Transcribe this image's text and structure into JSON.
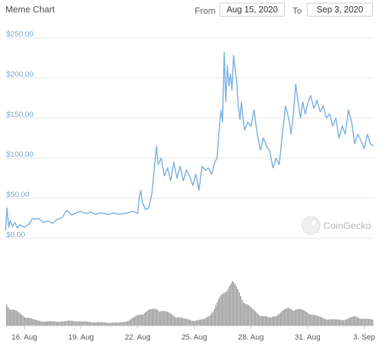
{
  "header": {
    "title": "Meme Chart",
    "from_label": "From",
    "from_value": "Aug 15, 2020",
    "to_label": "To",
    "to_value": "Sep 3, 2020"
  },
  "watermark": {
    "text": "CoinGecko"
  },
  "colors": {
    "price_line": "#7cb0e0",
    "volume_bar": "#888888",
    "grid": "#e6e6e6",
    "price_axis_labels": "#7aa9d8"
  },
  "chart_data": {
    "type": "line",
    "title": "",
    "xlabel": "",
    "ylabel": "",
    "ylim": [
      0,
      250
    ],
    "xlim": [
      "2020-08-15T00:00",
      "2020-09-03T12:00"
    ],
    "grid": true,
    "y_ticks": [
      "$0.00",
      "$50.00",
      "$100.00",
      "$150.00",
      "$200.00",
      "$250.00"
    ],
    "y_tick_values": [
      0,
      50,
      100,
      150,
      200,
      250
    ],
    "x_ticks": [
      "16. Aug",
      "19. Aug",
      "22. Aug",
      "25. Aug",
      "28. Aug",
      "31. Aug",
      "3. Sep"
    ],
    "x_tick_values": [
      "2020-08-16",
      "2020-08-19",
      "2020-08-22",
      "2020-08-25",
      "2020-08-28",
      "2020-08-31",
      "2020-09-03"
    ],
    "series": [
      {
        "values": [
          [
            "2020-08-15T00:00",
            10
          ],
          [
            "2020-08-15T02:00",
            38
          ],
          [
            "2020-08-15T04:00",
            14
          ],
          [
            "2020-08-15T06:00",
            22
          ],
          [
            "2020-08-15T09:00",
            15
          ],
          [
            "2020-08-15T12:00",
            20
          ],
          [
            "2020-08-15T15:00",
            13
          ],
          [
            "2020-08-15T18:00",
            17
          ],
          [
            "2020-08-16T00:00",
            14
          ],
          [
            "2020-08-16T06:00",
            18
          ],
          [
            "2020-08-16T10:00",
            25
          ],
          [
            "2020-08-16T13:00",
            24
          ],
          [
            "2020-08-16T18:00",
            25
          ],
          [
            "2020-08-17T00:00",
            20
          ],
          [
            "2020-08-17T06:00",
            22
          ],
          [
            "2020-08-17T12:00",
            19
          ],
          [
            "2020-08-17T18:00",
            24
          ],
          [
            "2020-08-18T00:00",
            26
          ],
          [
            "2020-08-18T06:00",
            35
          ],
          [
            "2020-08-18T12:00",
            29
          ],
          [
            "2020-08-18T18:00",
            32
          ],
          [
            "2020-08-19T00:00",
            34
          ],
          [
            "2020-08-19T06:00",
            31
          ],
          [
            "2020-08-19T12:00",
            33
          ],
          [
            "2020-08-19T18:00",
            30
          ],
          [
            "2020-08-20T00:00",
            32
          ],
          [
            "2020-08-20T06:00",
            31
          ],
          [
            "2020-08-20T12:00",
            30
          ],
          [
            "2020-08-20T18:00",
            32
          ],
          [
            "2020-08-21T00:00",
            30
          ],
          [
            "2020-08-21T06:00",
            31
          ],
          [
            "2020-08-21T12:00",
            32
          ],
          [
            "2020-08-21T18:00",
            34
          ],
          [
            "2020-08-22T00:00",
            31
          ],
          [
            "2020-08-22T02:00",
            50
          ],
          [
            "2020-08-22T04:00",
            60
          ],
          [
            "2020-08-22T06:00",
            45
          ],
          [
            "2020-08-22T10:00",
            36
          ],
          [
            "2020-08-22T14:00",
            38
          ],
          [
            "2020-08-22T18:00",
            55
          ],
          [
            "2020-08-22T20:00",
            75
          ],
          [
            "2020-08-22T22:00",
            95
          ],
          [
            "2020-08-23T00:00",
            115
          ],
          [
            "2020-08-23T02:00",
            92
          ],
          [
            "2020-08-23T06:00",
            100
          ],
          [
            "2020-08-23T10:00",
            78
          ],
          [
            "2020-08-23T14:00",
            88
          ],
          [
            "2020-08-23T18:00",
            72
          ],
          [
            "2020-08-23T22:00",
            95
          ],
          [
            "2020-08-24T02:00",
            75
          ],
          [
            "2020-08-24T06:00",
            90
          ],
          [
            "2020-08-24T10:00",
            72
          ],
          [
            "2020-08-24T14:00",
            85
          ],
          [
            "2020-08-24T18:00",
            78
          ],
          [
            "2020-08-24T22:00",
            66
          ],
          [
            "2020-08-25T02:00",
            80
          ],
          [
            "2020-08-25T06:00",
            60
          ],
          [
            "2020-08-25T10:00",
            90
          ],
          [
            "2020-08-25T14:00",
            85
          ],
          [
            "2020-08-25T18:00",
            88
          ],
          [
            "2020-08-25T22:00",
            80
          ],
          [
            "2020-08-26T02:00",
            95
          ],
          [
            "2020-08-26T05:00",
            100
          ],
          [
            "2020-08-26T08:00",
            140
          ],
          [
            "2020-08-26T10:00",
            160
          ],
          [
            "2020-08-26T12:00",
            145
          ],
          [
            "2020-08-26T14:00",
            232
          ],
          [
            "2020-08-26T16:00",
            170
          ],
          [
            "2020-08-26T18:00",
            215
          ],
          [
            "2020-08-26T20:00",
            190
          ],
          [
            "2020-08-26T22:00",
            205
          ],
          [
            "2020-08-27T00:00",
            185
          ],
          [
            "2020-08-27T02:00",
            228
          ],
          [
            "2020-08-27T04:00",
            210
          ],
          [
            "2020-08-27T06:00",
            195
          ],
          [
            "2020-08-27T08:00",
            165
          ],
          [
            "2020-08-27T10:00",
            148
          ],
          [
            "2020-08-27T12:00",
            170
          ],
          [
            "2020-08-27T14:00",
            150
          ],
          [
            "2020-08-27T16:00",
            135
          ],
          [
            "2020-08-27T20:00",
            145
          ],
          [
            "2020-08-28T00:00",
            140
          ],
          [
            "2020-08-28T04:00",
            160
          ],
          [
            "2020-08-28T08:00",
            130
          ],
          [
            "2020-08-28T12:00",
            110
          ],
          [
            "2020-08-28T16:00",
            125
          ],
          [
            "2020-08-28T20:00",
            115
          ],
          [
            "2020-08-29T00:00",
            108
          ],
          [
            "2020-08-29T04:00",
            88
          ],
          [
            "2020-08-29T08:00",
            100
          ],
          [
            "2020-08-29T12:00",
            92
          ],
          [
            "2020-08-29T16:00",
            130
          ],
          [
            "2020-08-29T20:00",
            165
          ],
          [
            "2020-08-30T00:00",
            150
          ],
          [
            "2020-08-30T03:00",
            130
          ],
          [
            "2020-08-30T06:00",
            155
          ],
          [
            "2020-08-30T09:00",
            192
          ],
          [
            "2020-08-30T12:00",
            170
          ],
          [
            "2020-08-30T15:00",
            150
          ],
          [
            "2020-08-30T18:00",
            170
          ],
          [
            "2020-08-30T21:00",
            155
          ],
          [
            "2020-08-31T00:00",
            168
          ],
          [
            "2020-08-31T04:00",
            178
          ],
          [
            "2020-08-31T08:00",
            162
          ],
          [
            "2020-08-31T12:00",
            172
          ],
          [
            "2020-08-31T16:00",
            158
          ],
          [
            "2020-08-31T20:00",
            165
          ],
          [
            "2020-09-01T00:00",
            150
          ],
          [
            "2020-09-01T04:00",
            155
          ],
          [
            "2020-09-01T08:00",
            140
          ],
          [
            "2020-09-01T12:00",
            150
          ],
          [
            "2020-09-01T16:00",
            125
          ],
          [
            "2020-09-01T20:00",
            140
          ],
          [
            "2020-09-02T00:00",
            130
          ],
          [
            "2020-09-02T04:00",
            160
          ],
          [
            "2020-09-02T08:00",
            145
          ],
          [
            "2020-09-02T12:00",
            118
          ],
          [
            "2020-09-02T16:00",
            130
          ],
          [
            "2020-09-02T20:00",
            122
          ],
          [
            "2020-09-03T00:00",
            112
          ],
          [
            "2020-09-03T04:00",
            130
          ],
          [
            "2020-09-03T08:00",
            118
          ],
          [
            "2020-09-03T12:00",
            115
          ]
        ]
      }
    ],
    "volume": {
      "type": "bar",
      "values": [
        [
          "2020-08-15T00:00",
          0.55
        ],
        [
          "2020-08-15T06:00",
          0.4
        ],
        [
          "2020-08-15T12:00",
          0.35
        ],
        [
          "2020-08-15T18:00",
          0.28
        ],
        [
          "2020-08-16T00:00",
          0.22
        ],
        [
          "2020-08-16T12:00",
          0.14
        ],
        [
          "2020-08-17T00:00",
          0.1
        ],
        [
          "2020-08-18T00:00",
          0.1
        ],
        [
          "2020-08-18T12:00",
          0.12
        ],
        [
          "2020-08-19T00:00",
          0.1
        ],
        [
          "2020-08-20T00:00",
          0.08
        ],
        [
          "2020-08-21T00:00",
          0.07
        ],
        [
          "2020-08-21T12:00",
          0.12
        ],
        [
          "2020-08-22T00:00",
          0.25
        ],
        [
          "2020-08-22T12:00",
          0.35
        ],
        [
          "2020-08-23T00:00",
          0.4
        ],
        [
          "2020-08-23T12:00",
          0.32
        ],
        [
          "2020-08-24T00:00",
          0.22
        ],
        [
          "2020-08-24T12:00",
          0.16
        ],
        [
          "2020-08-25T00:00",
          0.12
        ],
        [
          "2020-08-25T12:00",
          0.15
        ],
        [
          "2020-08-26T00:00",
          0.35
        ],
        [
          "2020-08-26T08:00",
          0.65
        ],
        [
          "2020-08-26T16:00",
          0.9
        ],
        [
          "2020-08-27T00:00",
          1.0
        ],
        [
          "2020-08-27T08:00",
          0.8
        ],
        [
          "2020-08-27T16:00",
          0.55
        ],
        [
          "2020-08-28T00:00",
          0.4
        ],
        [
          "2020-08-28T12:00",
          0.25
        ],
        [
          "2020-08-29T00:00",
          0.18
        ],
        [
          "2020-08-29T12:00",
          0.3
        ],
        [
          "2020-08-30T00:00",
          0.42
        ],
        [
          "2020-08-30T12:00",
          0.38
        ],
        [
          "2020-08-31T00:00",
          0.32
        ],
        [
          "2020-08-31T12:00",
          0.22
        ],
        [
          "2020-09-01T00:00",
          0.16
        ],
        [
          "2020-09-01T12:00",
          0.14
        ],
        [
          "2020-09-02T00:00",
          0.15
        ],
        [
          "2020-09-02T12:00",
          0.22
        ],
        [
          "2020-09-03T00:00",
          0.16
        ],
        [
          "2020-09-03T12:00",
          0.14
        ]
      ]
    },
    "legend": "none"
  }
}
